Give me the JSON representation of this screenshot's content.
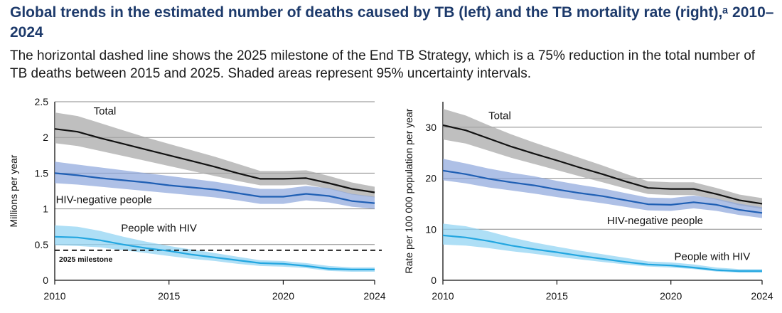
{
  "header": {
    "title": "Global trends in the estimated number of deaths caused by TB (left) and the TB mortality rate (right),ᵃ 2010–2024",
    "subtitle": "The horizontal dashed line shows the 2025 milestone of the End TB Strategy, which is a 75% reduction in the total number of TB deaths between 2015 and 2025. Shaded areas represent 95% uncertainty intervals."
  },
  "colors": {
    "total_line": "#111111",
    "total_band": "#a6a6a6",
    "hivneg_line": "#1f5fb4",
    "hivneg_band": "#8fa7dc",
    "hiv_line": "#22a6e0",
    "hiv_band": "#8fd3f2",
    "grid": "#8a8a8a",
    "milestone": "#111111"
  },
  "chart_data": [
    {
      "type": "area",
      "ylabel": "Millions per year",
      "ylim": [
        0,
        2.5
      ],
      "xlim": [
        2010,
        2024
      ],
      "xticks": [
        "2010",
        "2015",
        "2020",
        "2024"
      ],
      "yticks": [
        "0",
        "0.5",
        "1",
        "1.5",
        "2",
        "2.5"
      ],
      "grid": "horizontal",
      "x": [
        2010,
        2011,
        2012,
        2013,
        2014,
        2015,
        2016,
        2017,
        2018,
        2019,
        2020,
        2021,
        2022,
        2023,
        2024
      ],
      "series": [
        {
          "name": "Total",
          "label_x": 2011.7,
          "label_y": 2.32,
          "values": [
            2.12,
            2.08,
            1.99,
            1.91,
            1.83,
            1.75,
            1.67,
            1.59,
            1.5,
            1.42,
            1.42,
            1.43,
            1.36,
            1.28,
            1.23
          ],
          "lower": [
            1.92,
            1.88,
            1.81,
            1.74,
            1.67,
            1.6,
            1.53,
            1.46,
            1.39,
            1.33,
            1.33,
            1.34,
            1.28,
            1.2,
            1.16
          ],
          "upper": [
            2.35,
            2.3,
            2.2,
            2.1,
            2.0,
            1.91,
            1.82,
            1.73,
            1.63,
            1.53,
            1.53,
            1.54,
            1.46,
            1.37,
            1.31
          ]
        },
        {
          "name": "HIV-negative people",
          "label_x": 2010.05,
          "label_y": 1.08,
          "values": [
            1.5,
            1.47,
            1.43,
            1.4,
            1.37,
            1.33,
            1.3,
            1.27,
            1.22,
            1.17,
            1.17,
            1.21,
            1.18,
            1.11,
            1.08
          ],
          "lower": [
            1.36,
            1.34,
            1.31,
            1.28,
            1.25,
            1.22,
            1.19,
            1.16,
            1.12,
            1.07,
            1.07,
            1.12,
            1.09,
            1.03,
            1.0
          ],
          "upper": [
            1.66,
            1.62,
            1.58,
            1.54,
            1.5,
            1.46,
            1.42,
            1.38,
            1.33,
            1.28,
            1.28,
            1.32,
            1.29,
            1.21,
            1.17
          ]
        },
        {
          "name": "People with HIV",
          "label_x": 2012.9,
          "label_y": 0.68,
          "values": [
            0.61,
            0.6,
            0.56,
            0.5,
            0.45,
            0.41,
            0.36,
            0.32,
            0.28,
            0.24,
            0.23,
            0.2,
            0.16,
            0.15,
            0.15
          ],
          "lower": [
            0.49,
            0.48,
            0.46,
            0.42,
            0.38,
            0.34,
            0.3,
            0.27,
            0.23,
            0.2,
            0.19,
            0.17,
            0.13,
            0.12,
            0.12
          ],
          "upper": [
            0.77,
            0.75,
            0.69,
            0.61,
            0.54,
            0.48,
            0.43,
            0.38,
            0.33,
            0.28,
            0.27,
            0.24,
            0.2,
            0.18,
            0.18
          ]
        }
      ],
      "milestone": {
        "value": 0.42,
        "label": "2025 milestone"
      }
    },
    {
      "type": "area",
      "ylabel": "Rate per 100 000 population per year",
      "ylim": [
        0,
        35
      ],
      "xlim": [
        2010,
        2024
      ],
      "xticks": [
        "2010",
        "2015",
        "2020",
        "2024"
      ],
      "yticks": [
        "0",
        "10",
        "20",
        "30"
      ],
      "grid": "horizontal",
      "x": [
        2010,
        2011,
        2012,
        2013,
        2014,
        2015,
        2016,
        2017,
        2018,
        2019,
        2020,
        2021,
        2022,
        2023,
        2024
      ],
      "series": [
        {
          "name": "Total",
          "label_x": 2012,
          "label_y": 31.6,
          "values": [
            30.4,
            29.4,
            27.8,
            26.2,
            24.8,
            23.5,
            22.1,
            20.8,
            19.4,
            18.1,
            17.9,
            17.9,
            16.9,
            15.7,
            15.0
          ],
          "lower": [
            27.6,
            26.8,
            25.4,
            24.0,
            22.8,
            21.6,
            20.4,
            19.2,
            18.0,
            16.9,
            16.7,
            16.7,
            15.8,
            14.7,
            14.0
          ],
          "upper": [
            33.6,
            32.3,
            30.4,
            28.6,
            27.0,
            25.5,
            24.0,
            22.5,
            20.9,
            19.4,
            19.2,
            19.2,
            18.1,
            16.8,
            16.1
          ]
        },
        {
          "name": "HIV-negative people",
          "label_x": 2017.2,
          "label_y": 11.0,
          "values": [
            21.5,
            20.8,
            19.9,
            19.2,
            18.6,
            17.8,
            17.1,
            16.5,
            15.7,
            14.9,
            14.8,
            15.3,
            14.8,
            13.8,
            13.2
          ],
          "lower": [
            19.6,
            19.0,
            18.2,
            17.6,
            17.0,
            16.3,
            15.7,
            15.1,
            14.4,
            13.7,
            13.6,
            14.1,
            13.6,
            12.8,
            12.2
          ],
          "upper": [
            23.8,
            22.9,
            21.9,
            21.1,
            20.4,
            19.5,
            18.7,
            18.0,
            17.1,
            16.2,
            16.1,
            16.6,
            16.0,
            15.0,
            14.3
          ]
        },
        {
          "name": "People with HIV",
          "label_x": 2020.15,
          "label_y": 4.0,
          "values": [
            8.8,
            8.4,
            7.7,
            6.8,
            6.1,
            5.5,
            4.8,
            4.2,
            3.6,
            3.1,
            2.9,
            2.5,
            2.0,
            1.8,
            1.8
          ],
          "lower": [
            7.0,
            6.8,
            6.3,
            5.7,
            5.2,
            4.6,
            4.1,
            3.6,
            3.1,
            2.7,
            2.5,
            2.2,
            1.7,
            1.5,
            1.5
          ],
          "upper": [
            11.1,
            10.6,
            9.6,
            8.4,
            7.4,
            6.6,
            5.8,
            5.1,
            4.4,
            3.7,
            3.5,
            3.1,
            2.5,
            2.2,
            2.2
          ]
        }
      ]
    }
  ]
}
